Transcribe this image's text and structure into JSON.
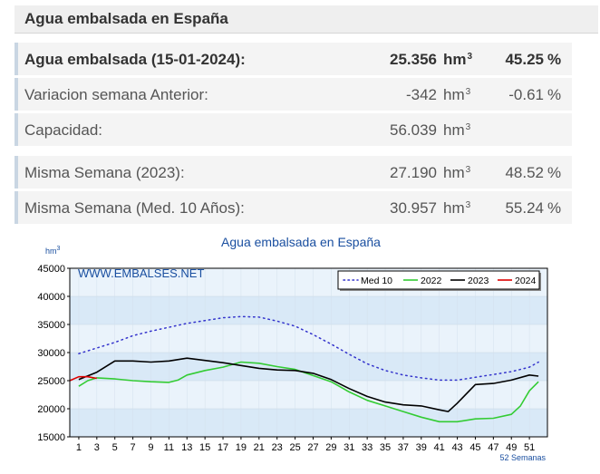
{
  "header": {
    "title": "Agua embalsada en España"
  },
  "rows": [
    {
      "label": "Agua embalsada (15-01-2024):",
      "value": "25.356",
      "unit": "hm",
      "unit_sup": "3",
      "pct": "45.25",
      "pct_symbol": "%"
    },
    {
      "label": "Variacion semana Anterior:",
      "value": "-342",
      "unit": "hm",
      "unit_sup": "3",
      "pct": "-0.61",
      "pct_symbol": "%"
    },
    {
      "label": "Capacidad:",
      "value": "56.039",
      "unit": "hm",
      "unit_sup": "3",
      "pct": "",
      "pct_symbol": ""
    },
    {
      "label": "Misma Semana (2023):",
      "value": "27.190",
      "unit": "hm",
      "unit_sup": "3",
      "pct": "48.52",
      "pct_symbol": "%"
    },
    {
      "label": "Misma Semana (Med. 10 Años):",
      "value": "30.957",
      "unit": "hm",
      "unit_sup": "3",
      "pct": "55.24",
      "pct_symbol": "%"
    }
  ],
  "chart_data": {
    "type": "line",
    "title": "Agua embalsada en España",
    "ylabel": "hm",
    "ylabel_sup": "3",
    "xlabel": "52 Semanas",
    "watermark": "WWW.EMBALSES.NET",
    "xlim": [
      0,
      53
    ],
    "ylim": [
      15000,
      45000
    ],
    "yticks": [
      "45000",
      "40000",
      "35000",
      "30000",
      "25000",
      "20000",
      "15000"
    ],
    "xticks": [
      "1",
      "3",
      "5",
      "7",
      "9",
      "11",
      "13",
      "15",
      "17",
      "19",
      "21",
      "23",
      "25",
      "27",
      "29",
      "31",
      "33",
      "35",
      "37",
      "39",
      "41",
      "43",
      "45",
      "47",
      "49",
      "51"
    ],
    "grid": true,
    "legend_position": "top-right",
    "colors": {
      "band_light": "#eaf3fb",
      "band_dark": "#d9e9f7",
      "frame": "#000000"
    },
    "series": [
      {
        "name": "Med 10",
        "color": "#3333cc",
        "style": "dotted",
        "x": [
          1,
          3,
          5,
          7,
          9,
          11,
          13,
          15,
          17,
          19,
          21,
          23,
          25,
          27,
          29,
          31,
          33,
          35,
          37,
          39,
          41,
          43,
          45,
          47,
          49,
          51,
          52
        ],
        "y": [
          29800,
          30800,
          31800,
          33000,
          33800,
          34500,
          35200,
          35700,
          36200,
          36400,
          36300,
          35600,
          34700,
          33200,
          31500,
          29700,
          28000,
          26800,
          26000,
          25500,
          25100,
          25100,
          25600,
          26100,
          26600,
          27400,
          28300
        ]
      },
      {
        "name": "2022",
        "color": "#33cc33",
        "style": "solid",
        "x": [
          1,
          2,
          3,
          5,
          7,
          9,
          11,
          12,
          13,
          15,
          17,
          19,
          21,
          23,
          25,
          27,
          29,
          31,
          33,
          35,
          37,
          39,
          41,
          43,
          45,
          47,
          49,
          50,
          51,
          52
        ],
        "y": [
          24000,
          25000,
          25500,
          25300,
          25000,
          24800,
          24700,
          25100,
          26000,
          26800,
          27400,
          28300,
          28100,
          27500,
          27000,
          25900,
          24800,
          23000,
          21500,
          20500,
          19500,
          18500,
          17700,
          17700,
          18200,
          18300,
          19000,
          20500,
          23200,
          24800
        ]
      },
      {
        "name": "2023",
        "color": "#000000",
        "style": "solid",
        "x": [
          1,
          3,
          5,
          7,
          9,
          11,
          13,
          15,
          17,
          19,
          21,
          23,
          25,
          27,
          29,
          31,
          33,
          35,
          37,
          39,
          41,
          42,
          43,
          45,
          47,
          49,
          51,
          52
        ],
        "y": [
          25200,
          26500,
          28500,
          28500,
          28300,
          28500,
          29000,
          28600,
          28200,
          27700,
          27200,
          26900,
          26800,
          26300,
          25200,
          23600,
          22200,
          21200,
          20700,
          20500,
          19800,
          19500,
          21000,
          24300,
          24500,
          25100,
          26000,
          25800
        ]
      },
      {
        "name": "2024",
        "color": "#dd0000",
        "style": "solid",
        "x": [
          0,
          1,
          2,
          3
        ],
        "y": [
          25000,
          25700,
          25700,
          25400
        ]
      }
    ]
  }
}
